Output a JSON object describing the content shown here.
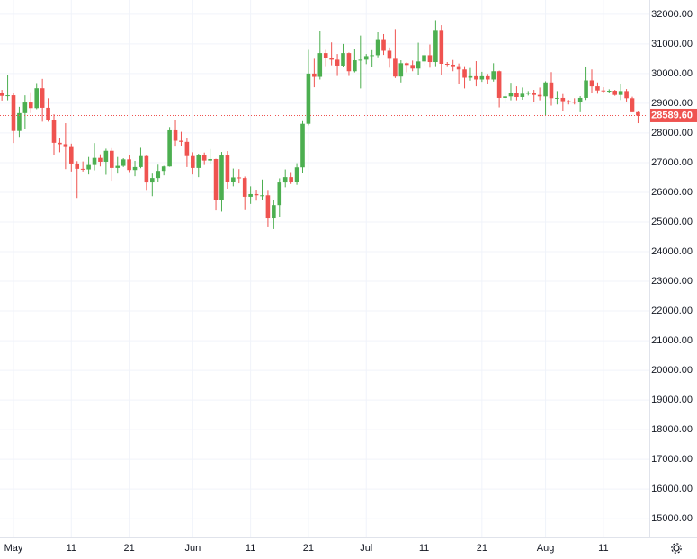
{
  "chart_data": {
    "type": "candlestick",
    "categories": [
      null,
      null,
      "May",
      null,
      null,
      null,
      null,
      null,
      null,
      null,
      null,
      null,
      "11",
      null,
      null,
      null,
      null,
      null,
      null,
      null,
      null,
      null,
      "21",
      null,
      null,
      null,
      null,
      null,
      null,
      null,
      null,
      null,
      null,
      "Jun",
      null,
      null,
      null,
      null,
      null,
      null,
      null,
      null,
      null,
      "11",
      null,
      null,
      null,
      null,
      null,
      null,
      null,
      null,
      null,
      "21",
      null,
      null,
      null,
      null,
      null,
      null,
      null,
      null,
      null,
      "Jul",
      null,
      null,
      null,
      null,
      null,
      null,
      null,
      null,
      null,
      "11",
      null,
      null,
      null,
      null,
      null,
      null,
      null,
      null,
      null,
      "21",
      null,
      null,
      null,
      null,
      null,
      null,
      null,
      null,
      null,
      null,
      "Aug",
      null,
      null,
      null,
      null,
      null,
      null,
      null,
      null,
      null,
      "11",
      null,
      null,
      null,
      null,
      null,
      null
    ],
    "open": [
      29340,
      29248,
      29268,
      28068,
      28669,
      29026,
      28838,
      29506,
      28848,
      28430,
      27669,
      27621,
      27525,
      26970,
      26790,
      26770,
      26920,
      27160,
      27030,
      27400,
      26820,
      26890,
      27110,
      26750,
      26850,
      27220,
      26330,
      26480,
      26720,
      26870,
      28090,
      27740,
      27700,
      27220,
      26820,
      27250,
      27070,
      27120,
      25730,
      27240,
      26340,
      26500,
      26480,
      25850,
      25940,
      25900,
      25900,
      25120,
      25570,
      26330,
      26510,
      26340,
      26840,
      28310,
      30000,
      29890,
      30690,
      30530,
      30470,
      30270,
      30690,
      30080,
      30450,
      30470,
      30590,
      30620,
      31160,
      30770,
      30500,
      29900,
      30350,
      30290,
      30170,
      30410,
      30620,
      30390,
      31470,
      30330,
      30300,
      30250,
      30140,
      29860,
      29910,
      29800,
      29910,
      29800,
      30080,
      29180,
      29230,
      29350,
      29210,
      29320,
      29360,
      29280,
      29230,
      29700,
      29170,
      29180,
      29070,
      29050,
      29040,
      29180,
      29770,
      29570,
      29430,
      29400,
      29420,
      29280,
      29410,
      29170,
      28700
    ],
    "high": [
      29450,
      29960,
      29338,
      28880,
      29266,
      29370,
      29680,
      29820,
      29170,
      28630,
      27830,
      28330,
      27640,
      27050,
      27040,
      27190,
      27660,
      27280,
      27470,
      27490,
      27190,
      27150,
      27270,
      27060,
      27500,
      27240,
      26630,
      26930,
      26890,
      28200,
      28450,
      28040,
      27830,
      27350,
      27300,
      27340,
      27460,
      27130,
      27360,
      27390,
      26800,
      26780,
      26530,
      26200,
      26090,
      26430,
      26080,
      25750,
      26470,
      26770,
      26680,
      26980,
      28400,
      30800,
      30500,
      31430,
      30800,
      31050,
      30660,
      31000,
      30710,
      30830,
      31280,
      30660,
      30790,
      31390,
      31330,
      30880,
      31500,
      30450,
      30380,
      30440,
      31040,
      30800,
      30980,
      31800,
      31630,
      30390,
      30460,
      30340,
      30250,
      30190,
      30420,
      30060,
      29990,
      30350,
      30100,
      29380,
      29690,
      29570,
      29530,
      29410,
      29450,
      29530,
      29740,
      30050,
      29410,
      29310,
      29110,
      29170,
      29240,
      30240,
      30140,
      29700,
      29540,
      29470,
      29450,
      29660,
      29480,
      29220,
      28720
    ],
    "low": [
      29090,
      29100,
      27660,
      27870,
      28130,
      28670,
      28800,
      28380,
      28380,
      27270,
      27350,
      26780,
      26700,
      25810,
      26700,
      26600,
      26740,
      26870,
      26590,
      26390,
      26630,
      26850,
      26680,
      26540,
      26810,
      26080,
      25870,
      26340,
      26570,
      26860,
      27540,
      27560,
      26850,
      26600,
      26510,
      26920,
      26970,
      25390,
      25350,
      26120,
      26200,
      26300,
      25400,
      25610,
      25720,
      25750,
      24820,
      24760,
      25170,
      26170,
      26280,
      26250,
      26650,
      28260,
      29540,
      29800,
      30250,
      30280,
      29920,
      30230,
      29920,
      30040,
      29500,
      30320,
      30210,
      30550,
      30630,
      30200,
      29850,
      29700,
      30040,
      30080,
      29950,
      30270,
      30200,
      30250,
      29940,
      30250,
      30080,
      29660,
      29500,
      29760,
      29570,
      29720,
      29640,
      29730,
      28860,
      29060,
      29100,
      29100,
      29120,
      29260,
      29030,
      29100,
      28590,
      28920,
      28960,
      28750,
      28960,
      28960,
      28700,
      29110,
      29350,
      29320,
      29330,
      29360,
      29250,
      29110,
      29060,
      28700,
      28330
    ],
    "close": [
      29248,
      29268,
      28068,
      28669,
      29026,
      28838,
      29506,
      28848,
      28430,
      27669,
      27621,
      27525,
      26970,
      26790,
      26770,
      26920,
      27160,
      27030,
      27400,
      26820,
      26890,
      27110,
      26750,
      26850,
      27220,
      26330,
      26480,
      26720,
      26870,
      28090,
      27740,
      27700,
      27220,
      26820,
      27250,
      27070,
      27120,
      25730,
      27240,
      26340,
      26500,
      26480,
      25850,
      25940,
      25900,
      25900,
      25120,
      25570,
      26330,
      26510,
      26340,
      26840,
      28310,
      30000,
      29890,
      30690,
      30530,
      30470,
      30270,
      30690,
      30080,
      30450,
      30470,
      30590,
      30620,
      31160,
      30770,
      30500,
      29900,
      30350,
      30290,
      30170,
      30410,
      30620,
      30390,
      31470,
      30330,
      30300,
      30250,
      30140,
      29860,
      29910,
      29800,
      29910,
      29800,
      30080,
      29180,
      29230,
      29350,
      29210,
      29320,
      29360,
      29280,
      29230,
      29700,
      29170,
      29180,
      29070,
      29050,
      29040,
      29180,
      29770,
      29570,
      29430,
      29400,
      29420,
      29280,
      29410,
      29170,
      28700,
      28589.6
    ],
    "up_color": "#4caf50",
    "down_color": "#ef5350",
    "ylim": [
      14370,
      32480
    ],
    "yticks": [
      {
        "value": 15000,
        "label": "15000.00"
      },
      {
        "value": 16000,
        "label": "16000.00"
      },
      {
        "value": 17000,
        "label": "17000.00"
      },
      {
        "value": 18000,
        "label": "18000.00"
      },
      {
        "value": 19000,
        "label": "19000.00"
      },
      {
        "value": 20000,
        "label": "20000.00"
      },
      {
        "value": 21000,
        "label": "21000.00"
      },
      {
        "value": 22000,
        "label": "22000.00"
      },
      {
        "value": 23000,
        "label": "23000.00"
      },
      {
        "value": 24000,
        "label": "24000.00"
      },
      {
        "value": 25000,
        "label": "25000.00"
      },
      {
        "value": 26000,
        "label": "26000.00"
      },
      {
        "value": 27000,
        "label": "27000.00"
      },
      {
        "value": 28000,
        "label": "28000.00"
      },
      {
        "value": 29000,
        "label": "29000.00"
      },
      {
        "value": 30000,
        "label": "30000.00"
      },
      {
        "value": 31000,
        "label": "31000.00"
      },
      {
        "value": 32000,
        "label": "32000.00"
      }
    ],
    "grid": true,
    "price_line": {
      "value": 28589.6,
      "label": "28589.60"
    }
  }
}
